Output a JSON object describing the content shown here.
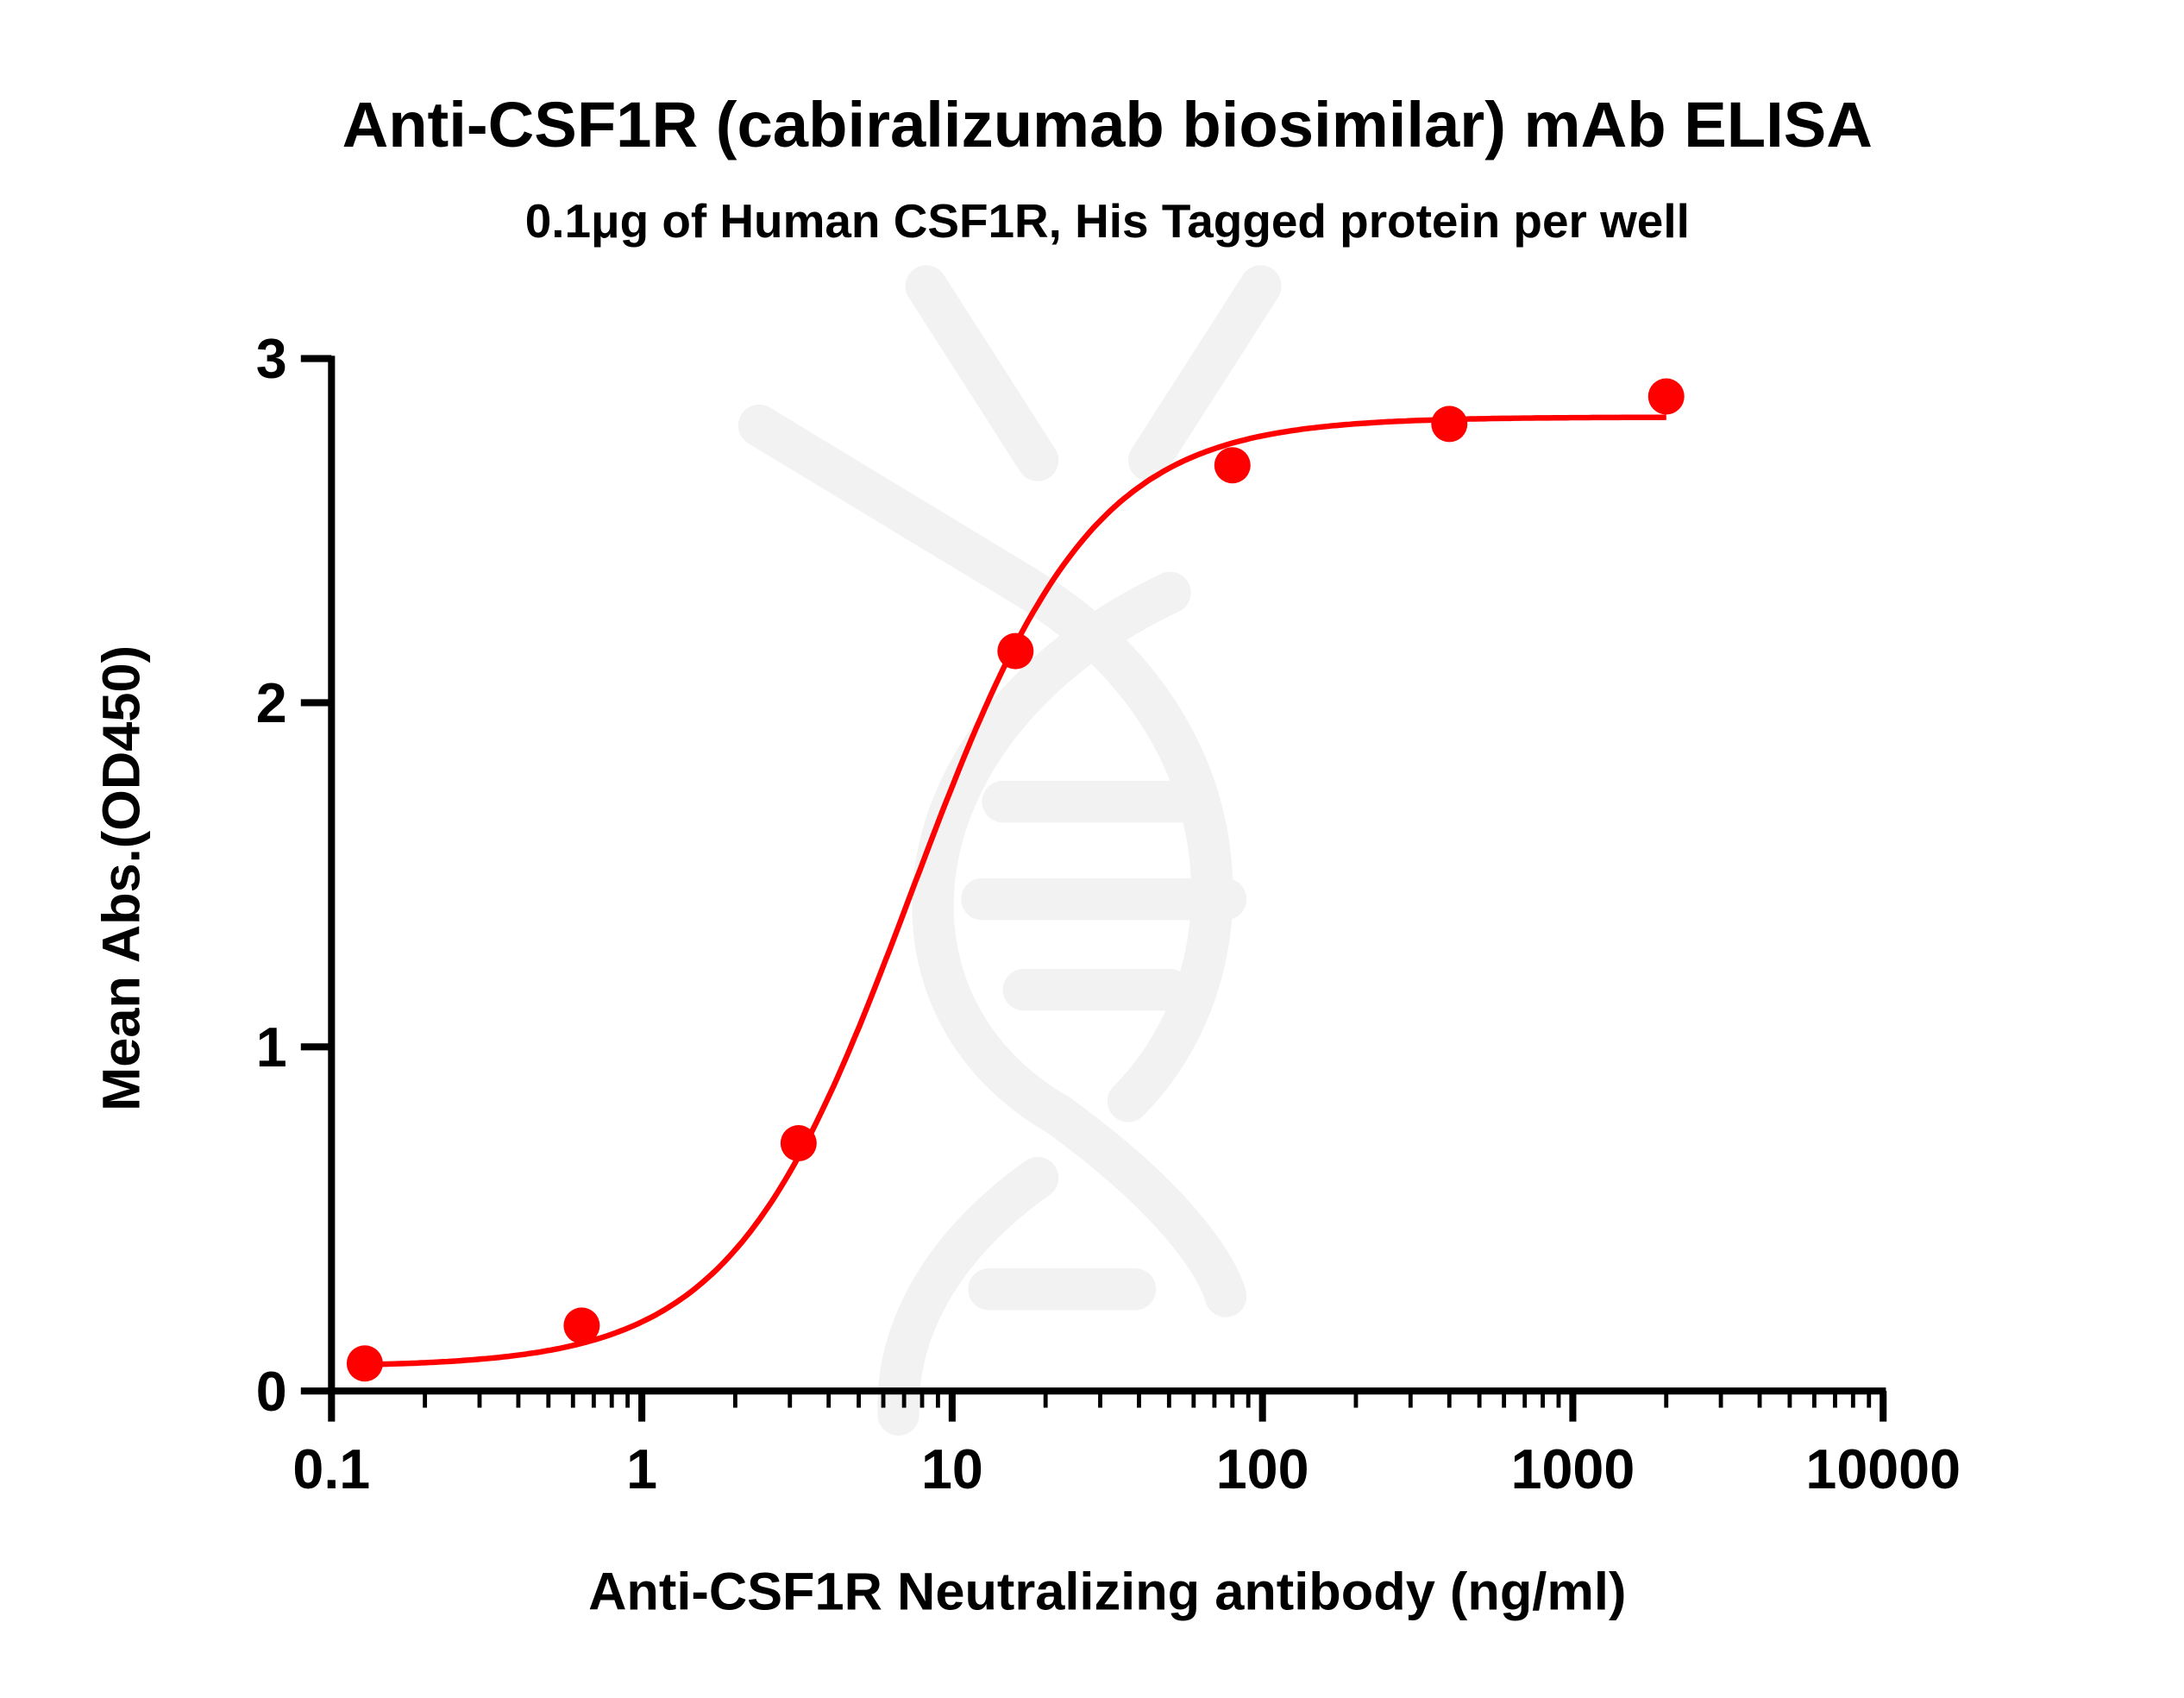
{
  "chart_data": {
    "type": "scatter",
    "title": "Anti-CSF1R (cabiralizumab biosimilar) mAb ELISA",
    "subtitle": "0.1μg of Human CSF1R, His Tagged protein per well",
    "xlabel": "Anti-CSF1R Neutralizing antibody (ng/ml)",
    "ylabel": "Mean Abs.(OD450)",
    "x_scale": "log",
    "xlim": [
      0.1,
      10000
    ],
    "ylim": [
      0,
      3
    ],
    "x_ticks": [
      "0.1",
      "1",
      "10",
      "100",
      "1000",
      "10000"
    ],
    "y_ticks": [
      "0",
      "1",
      "2",
      "3"
    ],
    "grid": false,
    "series": [
      {
        "x": [
          0.128,
          0.64,
          3.2,
          16,
          80,
          400,
          2000
        ],
        "y": [
          0.08,
          0.19,
          0.72,
          2.15,
          2.69,
          2.81,
          2.89
        ],
        "color": "#ff0000",
        "fit_curve": "four-parameter logistic"
      }
    ]
  }
}
